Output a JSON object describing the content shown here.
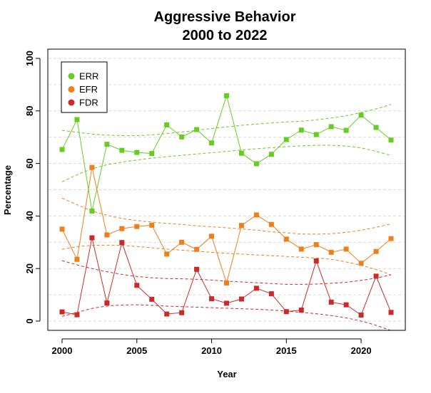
{
  "chart_data": {
    "type": "line",
    "title_lines": [
      "Aggressive Behavior",
      "2000 to 2022"
    ],
    "xlabel": "Year",
    "ylabel": "Percentage",
    "xlim": [
      2000,
      2022
    ],
    "ylim": [
      0,
      100
    ],
    "x_ticks": [
      "2000",
      "2005",
      "2010",
      "2015",
      "2020"
    ],
    "y_ticks": [
      "0",
      "20",
      "40",
      "60",
      "80",
      "100"
    ],
    "grid": "horizontal dashed",
    "legend_position": "top-left",
    "x": [
      2000,
      2001,
      2002,
      2003,
      2004,
      2005,
      2006,
      2007,
      2008,
      2009,
      2010,
      2011,
      2012,
      2013,
      2014,
      2015,
      2016,
      2017,
      2018,
      2019,
      2020,
      2021,
      2022
    ],
    "series": [
      {
        "name": "ERR",
        "color": "#66cc22",
        "values": [
          65.3,
          76.7,
          41.9,
          67.3,
          65.0,
          64.2,
          63.8,
          74.7,
          70.1,
          72.9,
          67.8,
          85.8,
          63.9,
          59.9,
          63.5,
          69.1,
          72.7,
          71.0,
          74.0,
          72.6,
          78.4,
          73.7,
          68.9
        ],
        "band_upper": [
          72.6,
          71.9,
          71.2,
          70.8,
          70.6,
          70.6,
          70.9,
          71.4,
          72.0,
          72.6,
          73.3,
          73.9,
          74.5,
          75.0,
          75.4,
          75.8,
          76.1,
          76.6,
          77.3,
          78.2,
          79.4,
          80.8,
          82.5
        ],
        "band_lower": [
          53.0,
          55.7,
          57.9,
          59.5,
          60.5,
          61.3,
          62.0,
          62.6,
          63.1,
          63.6,
          64.1,
          64.6,
          65.1,
          65.6,
          66.0,
          66.4,
          66.7,
          66.9,
          66.9,
          66.6,
          65.9,
          64.6,
          63.0
        ]
      },
      {
        "name": "EFR",
        "color": "#ee7f1a",
        "values": [
          35.0,
          23.5,
          58.5,
          32.8,
          35.2,
          36.0,
          36.5,
          25.5,
          30.0,
          27.3,
          32.3,
          14.5,
          36.4,
          40.4,
          36.8,
          31.2,
          27.4,
          29.1,
          26.2,
          27.4,
          22.0,
          26.5,
          31.4
        ],
        "band_upper": [
          46.8,
          44.3,
          42.0,
          40.3,
          39.1,
          38.3,
          37.7,
          37.2,
          36.8,
          36.3,
          35.9,
          35.5,
          35.1,
          34.6,
          34.0,
          33.6,
          33.2,
          33.1,
          33.3,
          33.8,
          34.6,
          35.7,
          37.0
        ],
        "band_lower": [
          27.3,
          28.3,
          28.8,
          28.9,
          28.8,
          28.4,
          27.9,
          27.4,
          27.0,
          26.6,
          26.2,
          25.8,
          25.5,
          25.2,
          24.9,
          24.6,
          24.3,
          24.0,
          23.5,
          22.5,
          21.2,
          19.6,
          17.6
        ]
      },
      {
        "name": "FDR",
        "color": "#cc2a2a",
        "values": [
          3.5,
          2.4,
          31.7,
          6.9,
          29.9,
          13.6,
          8.3,
          2.7,
          3.2,
          19.7,
          8.5,
          6.8,
          8.4,
          12.5,
          10.4,
          3.6,
          4.2,
          22.9,
          7.2,
          6.2,
          2.3,
          17.1,
          3.3
        ],
        "band_upper": [
          23.0,
          21.4,
          20.0,
          18.8,
          17.8,
          17.0,
          16.5,
          16.2,
          16.1,
          15.9,
          15.6,
          15.2,
          14.9,
          14.6,
          14.3,
          14.0,
          14.0,
          14.1,
          14.4,
          14.8,
          15.5,
          16.4,
          17.6
        ],
        "band_lower": [
          1.8,
          3.3,
          4.8,
          5.7,
          6.1,
          6.2,
          6.0,
          5.7,
          5.5,
          5.3,
          5.1,
          4.9,
          4.7,
          4.5,
          4.2,
          3.8,
          3.3,
          2.8,
          2.1,
          1.2,
          0.0,
          -1.6,
          -3.6
        ]
      }
    ]
  }
}
